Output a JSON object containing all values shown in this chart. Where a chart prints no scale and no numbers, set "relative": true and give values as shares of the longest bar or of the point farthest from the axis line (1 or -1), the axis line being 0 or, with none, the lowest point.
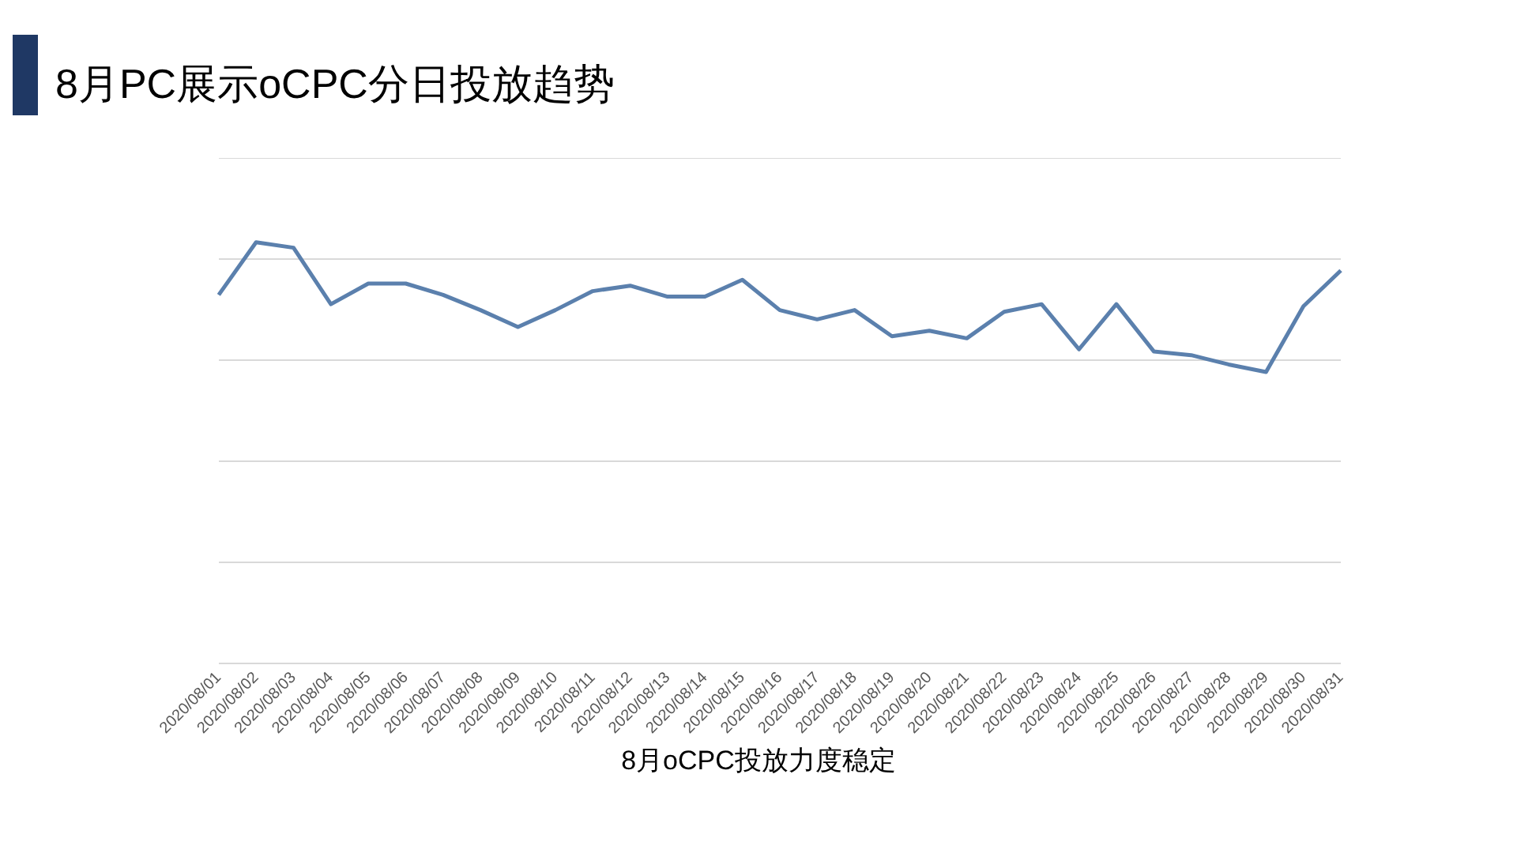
{
  "chart_data": {
    "type": "line",
    "title": "8月PC展示oCPC分日投放趋势",
    "annotations": [
      "8月oCPC投放力度稳定"
    ],
    "relative": true,
    "grid": "y",
    "legend": false,
    "marker": "none",
    "line_style": "solid",
    "categories": [
      "2020/08/01",
      "2020/08/02",
      "2020/08/03",
      "2020/08/04",
      "2020/08/05",
      "2020/08/06",
      "2020/08/07",
      "2020/08/08",
      "2020/08/09",
      "2020/08/10",
      "2020/08/11",
      "2020/08/12",
      "2020/08/13",
      "2020/08/14",
      "2020/08/15",
      "2020/08/16",
      "2020/08/17",
      "2020/08/18",
      "2020/08/19",
      "2020/08/20",
      "2020/08/21",
      "2020/08/22",
      "2020/08/23",
      "2020/08/24",
      "2020/08/25",
      "2020/08/26",
      "2020/08/27",
      "2020/08/28",
      "2020/08/29",
      "2020/08/30",
      "2020/08/31"
    ],
    "series": [
      {
        "color": "#5b80ad",
        "values": [
          0.875,
          1,
          0.987,
          0.853,
          0.902,
          0.902,
          0.875,
          0.839,
          0.799,
          0.839,
          0.884,
          0.897,
          0.871,
          0.871,
          0.911,
          0.839,
          0.817,
          0.839,
          0.777,
          0.79,
          0.772,
          0.835,
          0.853,
          0.746,
          0.853,
          0.741,
          0.732,
          0.71,
          0.692,
          0.848,
          0.933
        ]
      }
    ]
  }
}
